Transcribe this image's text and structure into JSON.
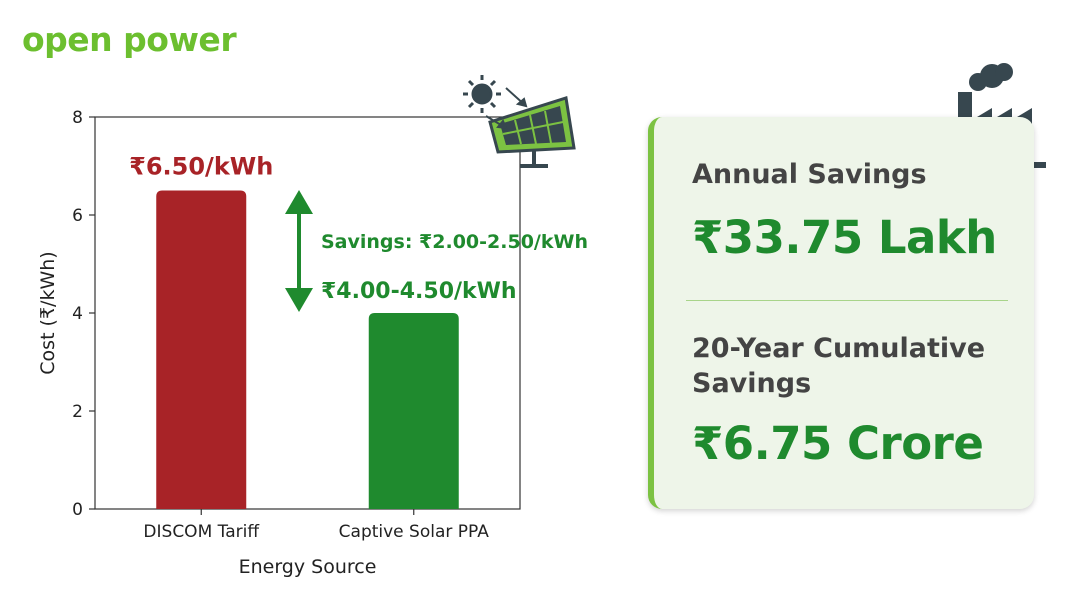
{
  "brand": {
    "logo_text": "open power",
    "accent": "#6cbf2f"
  },
  "chart_data": {
    "type": "bar",
    "categories": [
      "DISCOM Tariff",
      "Captive Solar PPA"
    ],
    "values": [
      6.5,
      4.0
    ],
    "colors": [
      "#a82327",
      "#1f8a2e"
    ],
    "xlabel": "Energy Source",
    "ylabel": "Cost (₹/kWh)",
    "ylim": [
      0,
      8
    ],
    "yticks": [
      0,
      2,
      4,
      6,
      8
    ],
    "grid": false,
    "annotations": {
      "discom_label": "₹6.50/kWh",
      "solar_label": "₹4.00-4.50/kWh",
      "savings_label": "Savings: ₹2.00-2.50/kWh"
    }
  },
  "panel": {
    "annual_heading": "Annual Savings",
    "annual_value": "₹33.75 Lakh",
    "cumulative_heading_line1": "20-Year Cumulative",
    "cumulative_heading_line2": "Savings",
    "cumulative_value": "₹6.75 Crore"
  },
  "icons": [
    "solar-panel-icon",
    "factory-icon"
  ]
}
